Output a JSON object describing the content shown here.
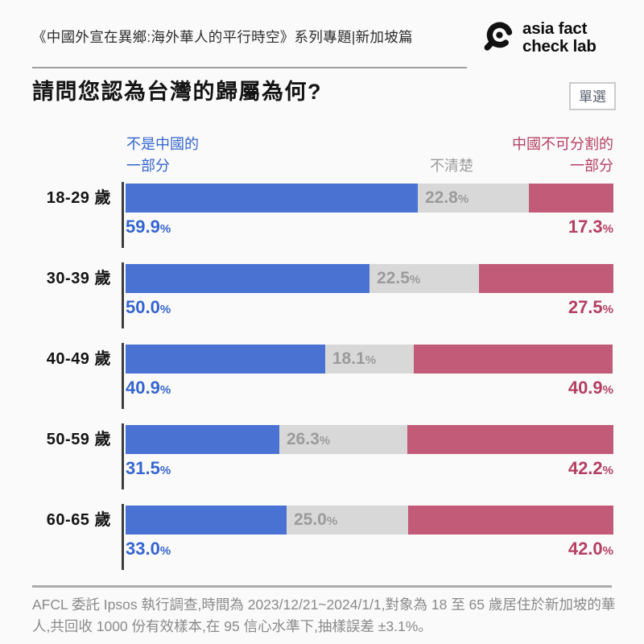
{
  "header": {
    "series_title": "《中國外宣在異鄉:海外華人的平行時空》系列專題|新加坡篇",
    "logo": {
      "icon": "magnifier-icon",
      "line1": "asia fact",
      "line2": "check lab"
    }
  },
  "question": {
    "title": "請問您認為台灣的歸屬為何?",
    "badge_label": "單選"
  },
  "legend": {
    "not_china": {
      "line1": "不是中國的",
      "line2": "一部分"
    },
    "unclear": "不清楚",
    "part_of_china": {
      "line1": "中國不可分割的",
      "line2": "一部分"
    }
  },
  "chart_data": {
    "type": "bar",
    "variant": "stacked-horizontal-100pct",
    "unit": "%",
    "value_suffix": "%",
    "categories": [
      "18-29 歲",
      "30-39 歲",
      "40-49 歲",
      "50-59 歲",
      "60-65 歲"
    ],
    "series": [
      {
        "key": "not-part-of-china",
        "name": "不是中國的一部分",
        "color": "#4a72d3",
        "values": [
          59.9,
          50.0,
          40.9,
          31.5,
          33.0
        ]
      },
      {
        "key": "unclear",
        "name": "不清楚",
        "color": "#d8d8d8",
        "values": [
          22.8,
          22.5,
          18.1,
          26.3,
          25.0
        ]
      },
      {
        "key": "inseparable-part-of-china",
        "name": "中國不可分割的一部分",
        "color": "#c15b77",
        "values": [
          17.3,
          27.5,
          40.9,
          42.2,
          42.0
        ]
      }
    ],
    "xlim": [
      0,
      100
    ],
    "legend_position": "top",
    "grid": false
  },
  "footer": {
    "text": "AFCL 委託 Ipsos 執行調查,時間為 2023/12/21~2024/1/1,對象為 18 至 65 歲居住於新加坡的華人,共回收 1000 份有效樣本,在 95 信心水準下,抽樣誤差 ±3.1%。"
  },
  "colors": {
    "background": "#fbfafa",
    "blue_bar": "#4a72d3",
    "blue_text": "#3465cf",
    "gray_bar": "#d8d8d8",
    "gray_text": "#9b9b9b",
    "red_bar": "#c15b77",
    "red_text": "#b43f63",
    "axis_line": "#3d3d3d"
  }
}
